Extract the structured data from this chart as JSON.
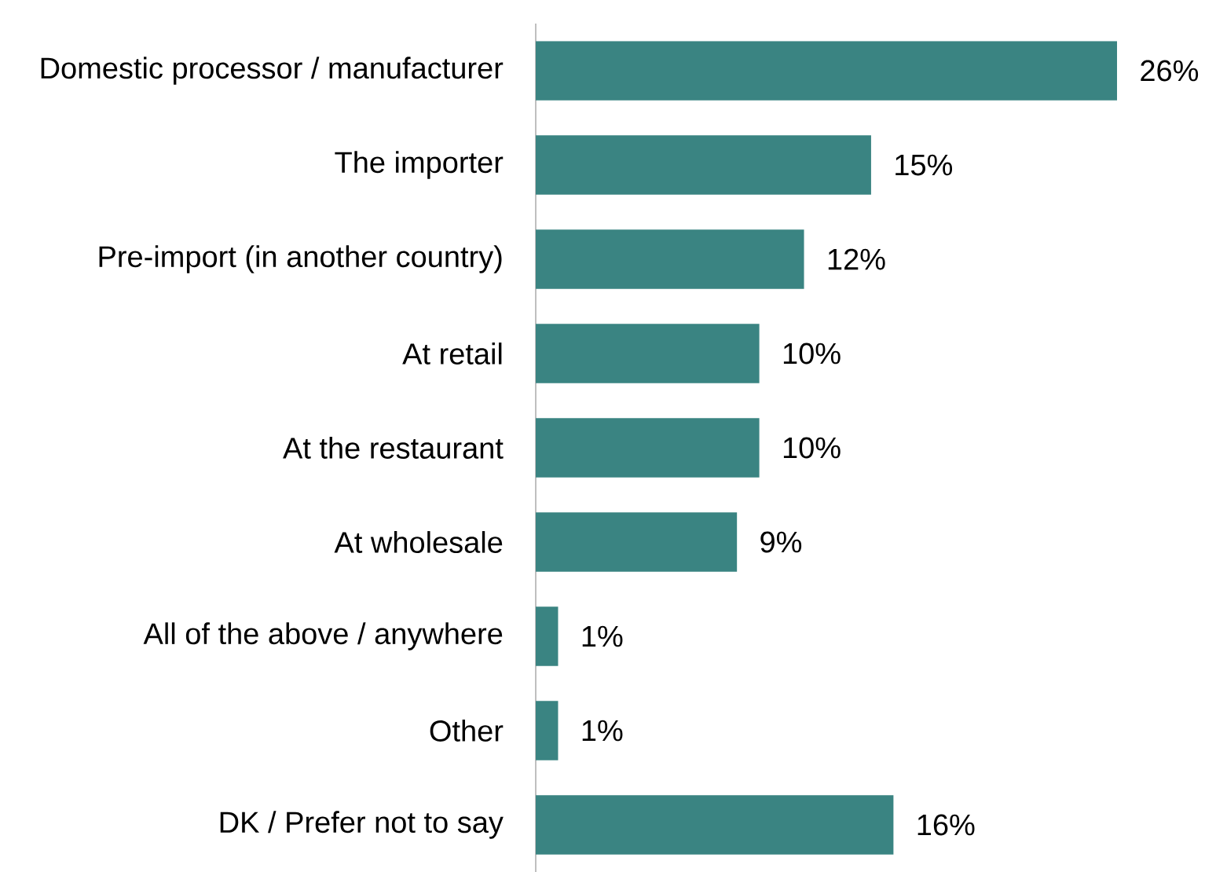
{
  "chart_data": {
    "type": "bar",
    "orientation": "horizontal",
    "categories": [
      "Domestic processor / manufacturer",
      "The importer",
      "Pre-import (in another country)",
      "At retail",
      "At the restaurant",
      "At wholesale",
      "All of the above / anywhere",
      "Other",
      "DK / Prefer not to say"
    ],
    "values": [
      26,
      15,
      12,
      10,
      10,
      9,
      1,
      1,
      16
    ],
    "value_labels": [
      "26%",
      "15%",
      "12%",
      "10%",
      "10%",
      "9%",
      "1%",
      "1%",
      "16%"
    ],
    "color": "#3a8482"
  }
}
